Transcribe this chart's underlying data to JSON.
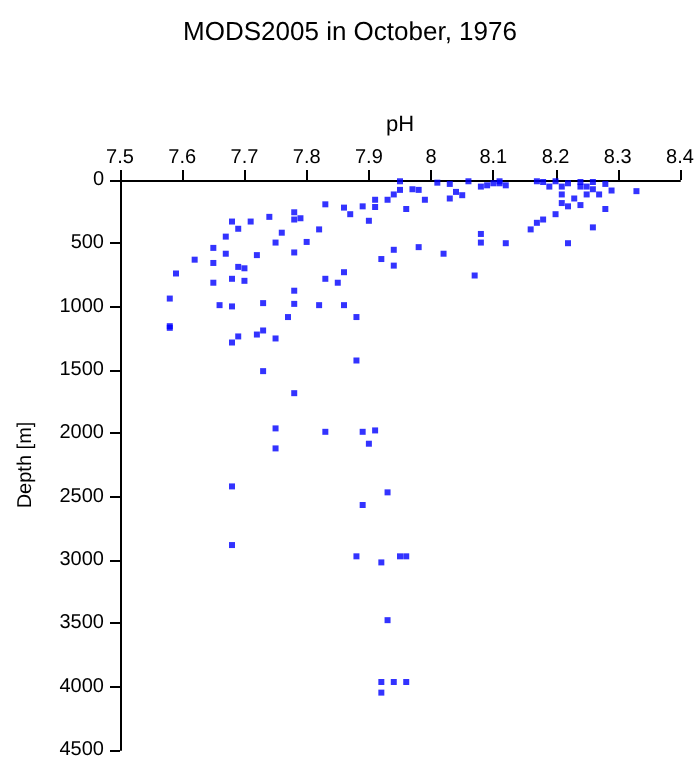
{
  "chart_data": {
    "type": "scatter",
    "title": "MODS2005 in October, 1976",
    "xlabel": "pH",
    "ylabel": "Depth [m]",
    "x": [
      7.58,
      7.58,
      7.59,
      7.62,
      7.65,
      7.65,
      7.65,
      7.66,
      7.67,
      7.67,
      7.68,
      7.68,
      7.68,
      7.69,
      7.69,
      7.7,
      7.7,
      7.71,
      7.72,
      7.73,
      7.74,
      7.75,
      7.76,
      7.77,
      7.78,
      7.78,
      7.78,
      7.78,
      7.78,
      7.79,
      7.8,
      7.82,
      7.82,
      7.83,
      7.83,
      7.85,
      7.86,
      7.86,
      7.86,
      7.87,
      7.88,
      7.89,
      7.9,
      7.91,
      7.91,
      7.92,
      7.93,
      7.94,
      7.94,
      7.94,
      7.95,
      7.95,
      7.96,
      7.97,
      7.98,
      7.98,
      7.99,
      8.01,
      8.02,
      8.03,
      8.03,
      8.04,
      8.05,
      8.06,
      8.07,
      8.08,
      8.08,
      8.08,
      8.09,
      8.1,
      8.11,
      8.11,
      8.12,
      8.12,
      8.16,
      8.17,
      8.18,
      8.17,
      8.18,
      8.19,
      8.2,
      8.2,
      8.21,
      8.21,
      8.21,
      8.22,
      8.22,
      8.22,
      8.23,
      8.24,
      8.24,
      8.24,
      8.25,
      8.25,
      8.26,
      8.26,
      8.26,
      8.27,
      8.28,
      8.28,
      8.29,
      8.33,
      7.58,
      7.68,
      7.69,
      7.72,
      7.73,
      7.75,
      7.73,
      7.78,
      7.88,
      7.75,
      7.83,
      7.89,
      7.91,
      7.9,
      7.75,
      7.68,
      7.93,
      7.89,
      7.68,
      7.88,
      7.92,
      7.95,
      7.96,
      7.93,
      7.92,
      7.94,
      7.96,
      7.92
    ],
    "values": [
      936,
      1154,
      738,
      629,
      536,
      655,
      811,
      988,
      447,
      582,
      328,
      780,
      998,
      385,
      686,
      796,
      697,
      328,
      593,
      972,
      291,
      494,
      416,
      1082,
      255,
      312,
      572,
      874,
      978,
      302,
      489,
      390,
      988,
      192,
      780,
      811,
      218,
      728,
      988,
      270,
      1082,
      208,
      322,
      156,
      213,
      624,
      156,
      551,
      676,
      114,
      78,
      10,
      229,
      73,
      530,
      78,
      156,
      21,
      582,
      31,
      146,
      94,
      120,
      10,
      754,
      52,
      426,
      494,
      42,
      26,
      26,
      10,
      42,
      499,
      390,
      338,
      312,
      10,
      16,
      52,
      10,
      270,
      52,
      114,
      182,
      208,
      499,
      26,
      146,
      52,
      198,
      16,
      114,
      52,
      73,
      374,
      16,
      114,
      229,
      31,
      83,
      88,
      1167,
      1283,
      1235,
      1220,
      1188,
      1251,
      1509,
      1683,
      1425,
      1961,
      1988,
      1988,
      1977,
      2082,
      2119,
      2419,
      2466,
      2566,
      2882,
      2971,
      3019,
      2971,
      2971,
      3475,
      3963,
      3963,
      3963,
      4047
    ],
    "color": "#0000ff",
    "marker": "square",
    "xlim": [
      7.5,
      8.4
    ],
    "xticks": [
      7.5,
      7.6,
      7.7,
      7.8,
      7.9,
      8,
      8.1,
      8.2,
      8.3,
      8.4
    ],
    "ylim": [
      4500,
      0
    ],
    "yticks": [
      0,
      500,
      1000,
      1500,
      2000,
      2500,
      3000,
      3500,
      4000,
      4500
    ]
  }
}
